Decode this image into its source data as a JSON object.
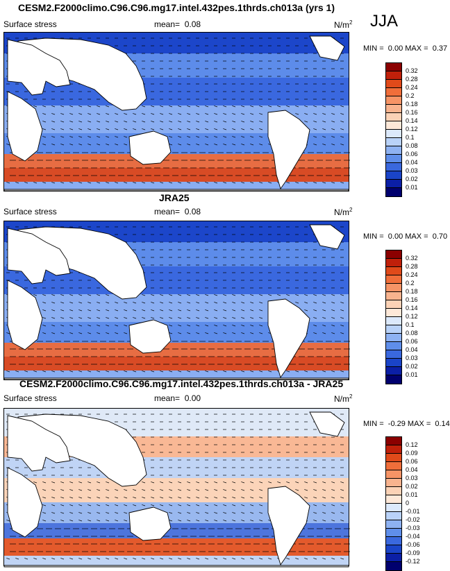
{
  "season": "JJA",
  "panels": [
    {
      "title": "CESM2.F2000climo.C96.C96.mg17.intel.432pes.1thrds.ch013a (yrs 1)",
      "variable": "Surface stress",
      "mean_label": "mean=",
      "mean_value": "0.08",
      "units": "N/m",
      "units_sup": "2",
      "min_label": "MIN =",
      "min_value": "0.00",
      "max_label": "MAX =",
      "max_value": "0.37",
      "colorbar": {
        "labels": [
          "0.32",
          "0.28",
          "0.24",
          "0.2",
          "0.18",
          "0.16",
          "0.14",
          "0.12",
          "0.1",
          "0.08",
          "0.06",
          "0.04",
          "0.03",
          "0.02",
          "0.01"
        ],
        "colors": [
          "#8b0000",
          "#c0200a",
          "#e04a1a",
          "#f06e3a",
          "#f69466",
          "#f8b38e",
          "#fbd2b6",
          "#fde8d8",
          "#dce9fb",
          "#b9d2f8",
          "#8eb2f2",
          "#5f8eea",
          "#3a68de",
          "#1a44c8",
          "#0b1fa6",
          "#00006e"
        ]
      }
    },
    {
      "title": "JRA25",
      "variable": "Surface stress",
      "mean_label": "mean=",
      "mean_value": "0.08",
      "units": "N/m",
      "units_sup": "2",
      "min_label": "MIN =",
      "min_value": "0.00",
      "max_label": "MAX =",
      "max_value": "0.70",
      "colorbar": {
        "labels": [
          "0.32",
          "0.28",
          "0.24",
          "0.2",
          "0.18",
          "0.16",
          "0.14",
          "0.12",
          "0.1",
          "0.08",
          "0.06",
          "0.04",
          "0.03",
          "0.02",
          "0.01"
        ],
        "colors": [
          "#8b0000",
          "#c0200a",
          "#e04a1a",
          "#f06e3a",
          "#f69466",
          "#f8b38e",
          "#fbd2b6",
          "#fde8d8",
          "#dce9fb",
          "#b9d2f8",
          "#8eb2f2",
          "#5f8eea",
          "#3a68de",
          "#1a44c8",
          "#0b1fa6",
          "#00006e"
        ]
      }
    },
    {
      "title": "CESM2.F2000climo.C96.C96.mg17.intel.432pes.1thrds.ch013a - JRA25",
      "variable": "Surface stress",
      "mean_label": "mean=",
      "mean_value": "0.00",
      "units": "N/m",
      "units_sup": "2",
      "min_label": "MIN =",
      "min_value": "-0.29",
      "max_label": "MAX =",
      "max_value": "0.14",
      "colorbar": {
        "labels": [
          "0.12",
          "0.09",
          "0.06",
          "0.04",
          "0.03",
          "0.02",
          "0.01",
          "0",
          "-0.01",
          "-0.02",
          "-0.03",
          "-0.04",
          "-0.06",
          "-0.09",
          "-0.12"
        ],
        "colors": [
          "#8b0000",
          "#c0200a",
          "#e04a1a",
          "#f06e3a",
          "#f69466",
          "#f8b38e",
          "#fbd2b6",
          "#fde8d8",
          "#dce9fb",
          "#b9d2f8",
          "#8eb2f2",
          "#5f8eea",
          "#3a68de",
          "#1a44c8",
          "#0b1fa6",
          "#00006e"
        ]
      }
    }
  ]
}
